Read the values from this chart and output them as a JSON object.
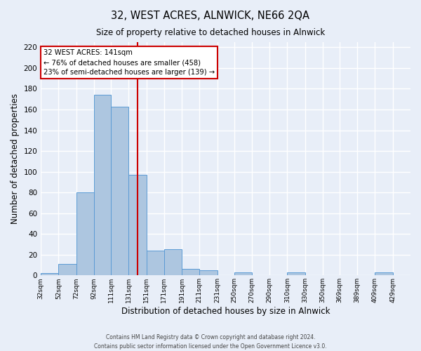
{
  "title": "32, WEST ACRES, ALNWICK, NE66 2QA",
  "subtitle": "Size of property relative to detached houses in Alnwick",
  "xlabel": "Distribution of detached houses by size in Alnwick",
  "ylabel": "Number of detached properties",
  "bin_labels": [
    "32sqm",
    "52sqm",
    "72sqm",
    "92sqm",
    "111sqm",
    "131sqm",
    "151sqm",
    "171sqm",
    "191sqm",
    "211sqm",
    "231sqm",
    "250sqm",
    "270sqm",
    "290sqm",
    "310sqm",
    "330sqm",
    "350sqm",
    "369sqm",
    "389sqm",
    "409sqm",
    "429sqm"
  ],
  "bar_values": [
    2,
    11,
    80,
    174,
    163,
    97,
    24,
    25,
    6,
    5,
    0,
    3,
    0,
    0,
    3,
    0,
    0,
    0,
    0,
    3,
    0
  ],
  "bar_color": "#adc6e0",
  "bar_edge_color": "#5b9bd5",
  "vline_x": 141,
  "annotation_title": "32 WEST ACRES: 141sqm",
  "annotation_line1": "← 76% of detached houses are smaller (458)",
  "annotation_line2": "23% of semi-detached houses are larger (139) →",
  "annotation_box_color": "#ffffff",
  "annotation_box_edge_color": "#cc0000",
  "vline_color": "#cc0000",
  "ylim": [
    0,
    225
  ],
  "yticks": [
    0,
    20,
    40,
    60,
    80,
    100,
    120,
    140,
    160,
    180,
    200,
    220
  ],
  "footer1": "Contains HM Land Registry data © Crown copyright and database right 2024.",
  "footer2": "Contains public sector information licensed under the Open Government Licence v3.0.",
  "background_color": "#e8eef8",
  "grid_color": "#ffffff",
  "figsize": [
    6.0,
    5.0
  ],
  "dpi": 100
}
